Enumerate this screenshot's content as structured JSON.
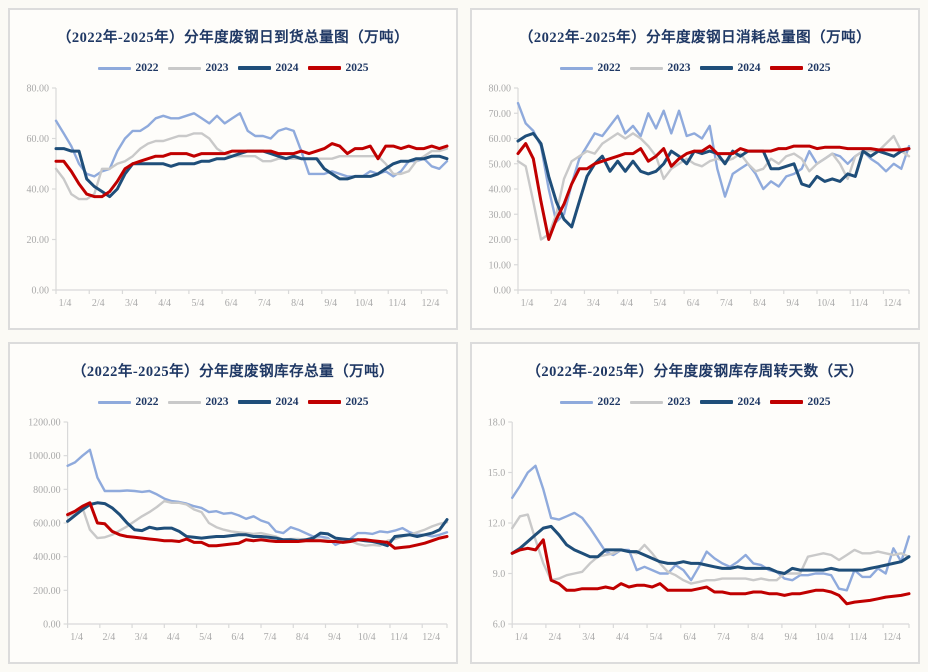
{
  "colors": {
    "title": "#1f3864",
    "axis_line": "#d9d9d9",
    "tick_label": "#a9a9a9",
    "series_2022": "#8faadc",
    "series_2023": "#c9c9c9",
    "series_2024": "#1f4e79",
    "series_2025": "#c00000"
  },
  "charts": [
    {
      "id": "daily-arrivals",
      "title": "（2022年-2025年）分年度废钢日到货总量图（万吨）",
      "y_axis": {
        "min": 0,
        "max": 80,
        "step": 20,
        "decimals": 2
      },
      "x_labels": [
        "1/4",
        "2/4",
        "3/4",
        "4/4",
        "5/4",
        "6/4",
        "7/4",
        "8/4",
        "9/4",
        "10/4",
        "11/4",
        "12/4"
      ],
      "series": [
        {
          "name": "2022",
          "color": "#8faadc",
          "values": [
            67,
            62,
            57,
            50,
            46,
            45,
            47,
            48,
            55,
            60,
            63,
            63,
            65,
            68,
            69,
            68,
            68,
            69,
            70,
            68,
            66,
            69,
            66,
            68,
            70,
            63,
            61,
            61,
            60,
            63,
            64,
            63,
            55,
            46,
            46,
            46,
            47,
            46,
            45,
            45,
            45,
            47,
            46,
            47,
            45,
            47,
            51,
            51,
            52,
            49,
            48,
            51
          ]
        },
        {
          "name": "2023",
          "color": "#c9c9c9",
          "values": [
            48,
            44,
            38,
            36,
            36,
            38,
            48,
            48,
            50,
            51,
            53,
            56,
            58,
            59,
            59,
            60,
            61,
            61,
            62,
            62,
            60,
            56,
            54,
            53,
            53,
            53,
            53,
            51,
            51,
            52,
            52,
            52,
            52,
            52,
            52,
            52,
            52,
            53,
            53,
            53,
            53,
            53,
            53,
            50,
            46,
            46,
            47,
            51,
            53,
            55,
            55,
            56
          ]
        },
        {
          "name": "2024",
          "color": "#1f4e79",
          "values": [
            56,
            56,
            55,
            55,
            44,
            41,
            39,
            37,
            40,
            46,
            50,
            50,
            50,
            50,
            50,
            49,
            50,
            50,
            50,
            51,
            51,
            52,
            52,
            53,
            54,
            55,
            55,
            55,
            54,
            53,
            52,
            53,
            52,
            52,
            52,
            48,
            46,
            44,
            44,
            45,
            45,
            45,
            46,
            48,
            50,
            51,
            51,
            52,
            52,
            53,
            53,
            52
          ]
        },
        {
          "name": "2025",
          "color": "#c00000",
          "values": [
            51,
            51,
            47,
            42,
            38,
            37,
            37,
            39,
            43,
            48,
            50,
            51,
            52,
            53,
            53,
            54,
            54,
            54,
            53,
            54,
            54,
            54,
            54,
            55,
            55,
            55,
            55,
            55,
            55,
            54,
            54,
            54,
            55,
            54,
            55,
            56,
            58,
            57,
            54,
            56,
            56,
            57,
            52,
            57,
            57,
            56,
            57,
            56,
            56,
            57,
            56,
            57
          ]
        }
      ]
    },
    {
      "id": "daily-consumption",
      "title": "（2022年-2025年）分年度废钢日消耗总量图（万吨）",
      "y_axis": {
        "min": 0,
        "max": 80,
        "step": 10,
        "decimals": 2
      },
      "x_labels": [
        "1/4",
        "2/4",
        "3/4",
        "4/4",
        "5/4",
        "6/4",
        "7/4",
        "8/4",
        "9/4",
        "10/4",
        "11/4",
        "12/4"
      ],
      "series": [
        {
          "name": "2022",
          "color": "#8faadc",
          "values": [
            74,
            66,
            63,
            57,
            40,
            27,
            30,
            42,
            52,
            57,
            62,
            61,
            65,
            69,
            62,
            65,
            61,
            70,
            64,
            71,
            62,
            71,
            61,
            62,
            60,
            65,
            48,
            37,
            46,
            48,
            50,
            46,
            40,
            43,
            41,
            45,
            46,
            48,
            55,
            50,
            52,
            54,
            53,
            50,
            53,
            55,
            52,
            50,
            47,
            50,
            48,
            57
          ]
        },
        {
          "name": "2023",
          "color": "#c9c9c9",
          "values": [
            51,
            49,
            35,
            20,
            22,
            30,
            44,
            51,
            53,
            55,
            54,
            58,
            60,
            62,
            60,
            62,
            60,
            57,
            53,
            44,
            48,
            50,
            52,
            50,
            49,
            51,
            52,
            51,
            52,
            54,
            50,
            47,
            48,
            52,
            50,
            53,
            54,
            52,
            47,
            50,
            52,
            54,
            50,
            44,
            53,
            55,
            55,
            55,
            58,
            61,
            55,
            53
          ]
        },
        {
          "name": "2024",
          "color": "#1f4e79",
          "values": [
            59,
            61,
            62,
            58,
            45,
            35,
            28,
            25,
            35,
            45,
            50,
            53,
            47,
            51,
            47,
            51,
            47,
            46,
            47,
            50,
            55,
            53,
            50,
            55,
            54,
            55,
            54,
            50,
            55,
            53,
            55,
            55,
            55,
            48,
            48,
            49,
            50,
            42,
            41,
            45,
            43,
            44,
            43,
            46,
            45,
            55,
            53,
            55,
            54,
            53,
            55,
            56
          ]
        },
        {
          "name": "2025",
          "color": "#c00000",
          "values": [
            54,
            58,
            52,
            35,
            20,
            28,
            34,
            42,
            48,
            48,
            50,
            51,
            52,
            53,
            54,
            54,
            56,
            51,
            53,
            56,
            49,
            52,
            54,
            55,
            55,
            57,
            54,
            54,
            54,
            56,
            55,
            55,
            55,
            55,
            56,
            56,
            57,
            57,
            57,
            56,
            56.5,
            56.5,
            56.5,
            56,
            56,
            56,
            56,
            55.5,
            55.5,
            55.5,
            55.5,
            56
          ]
        }
      ]
    },
    {
      "id": "inventory-total",
      "title": "（2022年-2025年）分年度废钢库存总量（万吨）",
      "y_axis": {
        "min": 0,
        "max": 1200,
        "step": 200,
        "decimals": 2
      },
      "x_labels": [
        "1/4",
        "2/4",
        "3/4",
        "4/4",
        "5/4",
        "6/4",
        "7/4",
        "8/4",
        "9/4",
        "10/4",
        "11/4",
        "12/4"
      ],
      "series": [
        {
          "name": "2022",
          "color": "#8faadc",
          "values": [
            940,
            960,
            1000,
            1035,
            870,
            790,
            790,
            790,
            793,
            790,
            785,
            790,
            770,
            745,
            730,
            725,
            715,
            700,
            690,
            665,
            670,
            655,
            660,
            645,
            625,
            640,
            615,
            600,
            550,
            540,
            575,
            560,
            540,
            520,
            520,
            510,
            470,
            490,
            505,
            540,
            540,
            535,
            550,
            545,
            555,
            570,
            545,
            530,
            530,
            520,
            530,
            545
          ]
        },
        {
          "name": "2023",
          "color": "#c9c9c9",
          "values": [
            640,
            660,
            690,
            560,
            510,
            515,
            530,
            555,
            580,
            610,
            640,
            665,
            695,
            730,
            720,
            720,
            710,
            680,
            665,
            600,
            575,
            560,
            550,
            545,
            540,
            535,
            540,
            530,
            520,
            500,
            505,
            505,
            500,
            505,
            500,
            500,
            490,
            500,
            495,
            475,
            465,
            470,
            465,
            495,
            505,
            520,
            530,
            545,
            560,
            580,
            595,
            605
          ]
        },
        {
          "name": "2024",
          "color": "#1f4e79",
          "values": [
            610,
            645,
            680,
            710,
            720,
            715,
            690,
            650,
            600,
            560,
            555,
            575,
            565,
            570,
            570,
            550,
            520,
            515,
            510,
            515,
            520,
            520,
            525,
            530,
            530,
            520,
            520,
            515,
            510,
            500,
            500,
            495,
            500,
            510,
            540,
            535,
            510,
            505,
            500,
            500,
            495,
            490,
            480,
            465,
            520,
            525,
            530,
            520,
            530,
            540,
            560,
            620
          ]
        },
        {
          "name": "2025",
          "color": "#c00000",
          "values": [
            650,
            670,
            700,
            720,
            600,
            595,
            550,
            530,
            520,
            515,
            510,
            505,
            500,
            495,
            495,
            490,
            505,
            485,
            485,
            465,
            465,
            470,
            475,
            480,
            500,
            495,
            500,
            495,
            490,
            490,
            490,
            490,
            495,
            495,
            495,
            490,
            490,
            485,
            490,
            500,
            500,
            495,
            490,
            485,
            450,
            455,
            460,
            470,
            480,
            495,
            510,
            520
          ]
        }
      ]
    },
    {
      "id": "turnover-days",
      "title": "（2022年-2025年）分年度废钢库存周转天数（天）",
      "y_axis": {
        "min": 6,
        "max": 18,
        "step": 3,
        "decimals": 1
      },
      "x_labels": [
        "1/4",
        "2/4",
        "3/4",
        "4/4",
        "5/4",
        "6/4",
        "7/4",
        "8/4",
        "9/4",
        "10/4",
        "11/4",
        "12/4"
      ],
      "series": [
        {
          "name": "2022",
          "color": "#8faadc",
          "values": [
            13.5,
            14.2,
            15.0,
            15.4,
            14.0,
            12.3,
            12.2,
            12.4,
            12.6,
            12.3,
            11.7,
            11.0,
            10.3,
            10.1,
            10.4,
            10.4,
            9.2,
            9.4,
            9.2,
            9.0,
            9.0,
            9.5,
            9.2,
            8.6,
            9.4,
            10.3,
            9.9,
            9.6,
            9.4,
            9.7,
            10.1,
            9.6,
            9.5,
            9.2,
            9.1,
            8.7,
            8.6,
            8.9,
            8.9,
            9.0,
            9.0,
            8.9,
            8.1,
            8.0,
            9.2,
            8.8,
            8.8,
            9.3,
            9.0,
            10.5,
            9.7,
            11.2
          ]
        },
        {
          "name": "2023",
          "color": "#c9c9c9",
          "values": [
            11.7,
            12.4,
            12.5,
            11.0,
            9.6,
            8.6,
            8.7,
            8.9,
            9.0,
            9.1,
            9.6,
            10.0,
            10.1,
            10.2,
            10.4,
            10.3,
            10.2,
            10.7,
            10.2,
            9.6,
            9.1,
            8.9,
            8.6,
            8.4,
            8.5,
            8.6,
            8.6,
            8.7,
            8.7,
            8.7,
            8.7,
            8.6,
            8.7,
            8.6,
            8.6,
            9.0,
            9.0,
            9.0,
            10.0,
            10.1,
            10.2,
            10.1,
            9.8,
            10.1,
            10.4,
            10.2,
            10.2,
            10.3,
            10.2,
            10.1,
            10.2,
            10.0
          ]
        },
        {
          "name": "2024",
          "color": "#1f4e79",
          "values": [
            10.2,
            10.5,
            10.9,
            11.3,
            11.7,
            11.8,
            11.3,
            10.7,
            10.4,
            10.2,
            10.0,
            10.0,
            10.4,
            10.4,
            10.4,
            10.3,
            10.3,
            10.1,
            9.9,
            9.7,
            9.6,
            9.6,
            9.7,
            9.6,
            9.6,
            9.5,
            9.4,
            9.3,
            9.3,
            9.4,
            9.3,
            9.3,
            9.3,
            9.3,
            9.1,
            9.0,
            9.3,
            9.2,
            9.2,
            9.2,
            9.2,
            9.3,
            9.2,
            9.2,
            9.2,
            9.2,
            9.3,
            9.4,
            9.5,
            9.6,
            9.7,
            10.0
          ]
        },
        {
          "name": "2025",
          "color": "#c00000",
          "values": [
            10.2,
            10.4,
            10.5,
            10.4,
            11.0,
            8.6,
            8.4,
            8.0,
            8.0,
            8.1,
            8.1,
            8.1,
            8.2,
            8.1,
            8.4,
            8.2,
            8.3,
            8.3,
            8.2,
            8.4,
            8.0,
            8.0,
            8.0,
            8.0,
            8.1,
            8.2,
            7.9,
            7.9,
            7.8,
            7.8,
            7.8,
            7.9,
            7.9,
            7.8,
            7.8,
            7.7,
            7.8,
            7.8,
            7.9,
            8.0,
            8.0,
            7.9,
            7.7,
            7.2,
            7.3,
            7.35,
            7.4,
            7.5,
            7.6,
            7.65,
            7.7,
            7.8
          ]
        }
      ]
    }
  ]
}
